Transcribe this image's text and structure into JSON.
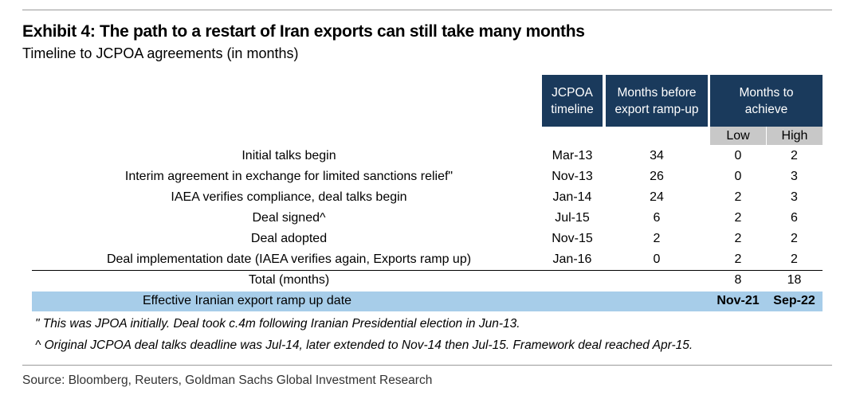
{
  "exhibit": {
    "title": "Exhibit 4: The path to a restart of Iran exports can still take many months",
    "subtitle": "Timeline to JCPOA agreements (in months)"
  },
  "table": {
    "headers": {
      "timeline": "JCPOA timeline",
      "months_before": "Months before export ramp-up",
      "months_to_achieve": "Months to achieve",
      "low": "Low",
      "high": "High"
    },
    "rows": [
      {
        "label": "Initial talks begin",
        "timeline": "Mar-13",
        "months_before": "34",
        "low": "0",
        "high": "2"
      },
      {
        "label": "Interim agreement in exchange for limited sanctions relief\"",
        "timeline": "Nov-13",
        "months_before": "26",
        "low": "0",
        "high": "3"
      },
      {
        "label": "IAEA verifies compliance, deal talks begin",
        "timeline": "Jan-14",
        "months_before": "24",
        "low": "2",
        "high": "3"
      },
      {
        "label": "Deal signed^",
        "timeline": "Jul-15",
        "months_before": "6",
        "low": "2",
        "high": "6"
      },
      {
        "label": "Deal adopted",
        "timeline": "Nov-15",
        "months_before": "2",
        "low": "2",
        "high": "2"
      },
      {
        "label": "Deal implementation date (IAEA verifies again, Exports ramp up)",
        "timeline": "Jan-16",
        "months_before": "0",
        "low": "2",
        "high": "2"
      }
    ],
    "total": {
      "label": "Total (months)",
      "low": "8",
      "high": "18"
    },
    "effective": {
      "label": "Effective Iranian export ramp up date",
      "low": "Nov-21",
      "high": "Sep-22"
    }
  },
  "notes": [
    "\" This was JPOA initially. Deal took c.4m following Iranian Presidential election in Jun-13.",
    "^ Original JCPOA deal talks deadline was Jul-14, later extended to Nov-14 then Jul-15. Framework deal reached Apr-15."
  ],
  "source": "Source: Bloomberg, Reuters, Goldman Sachs Global Investment Research",
  "colors": {
    "header_bg": "#1a3a5c",
    "subheader_bg": "#c8c8c8",
    "highlight_bg": "#a7cde9"
  }
}
